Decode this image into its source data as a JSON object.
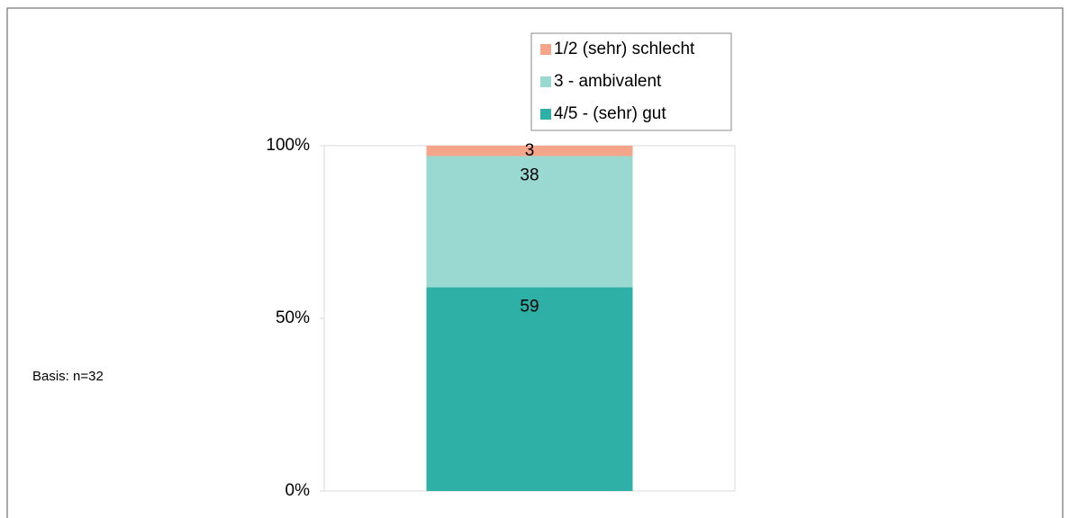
{
  "chart_data": {
    "type": "stacked_bar",
    "categories": [
      null
    ],
    "series": [
      {
        "name": "4/5 - (sehr) gut",
        "color": "#2eb0a6",
        "values": [
          59
        ]
      },
      {
        "name": "3 - ambivalent",
        "color": "#9ad8d2",
        "values": [
          38
        ]
      },
      {
        "name": "1/2 (sehr) schlecht",
        "color": "#f4a58a",
        "values": [
          3
        ]
      }
    ],
    "ylim": [
      0,
      100
    ],
    "yticks": [
      {
        "value": 0,
        "label": "0%"
      },
      {
        "value": 50,
        "label": "50%"
      },
      {
        "value": 100,
        "label": "100%"
      }
    ],
    "annotation": "Basis: n=32"
  }
}
